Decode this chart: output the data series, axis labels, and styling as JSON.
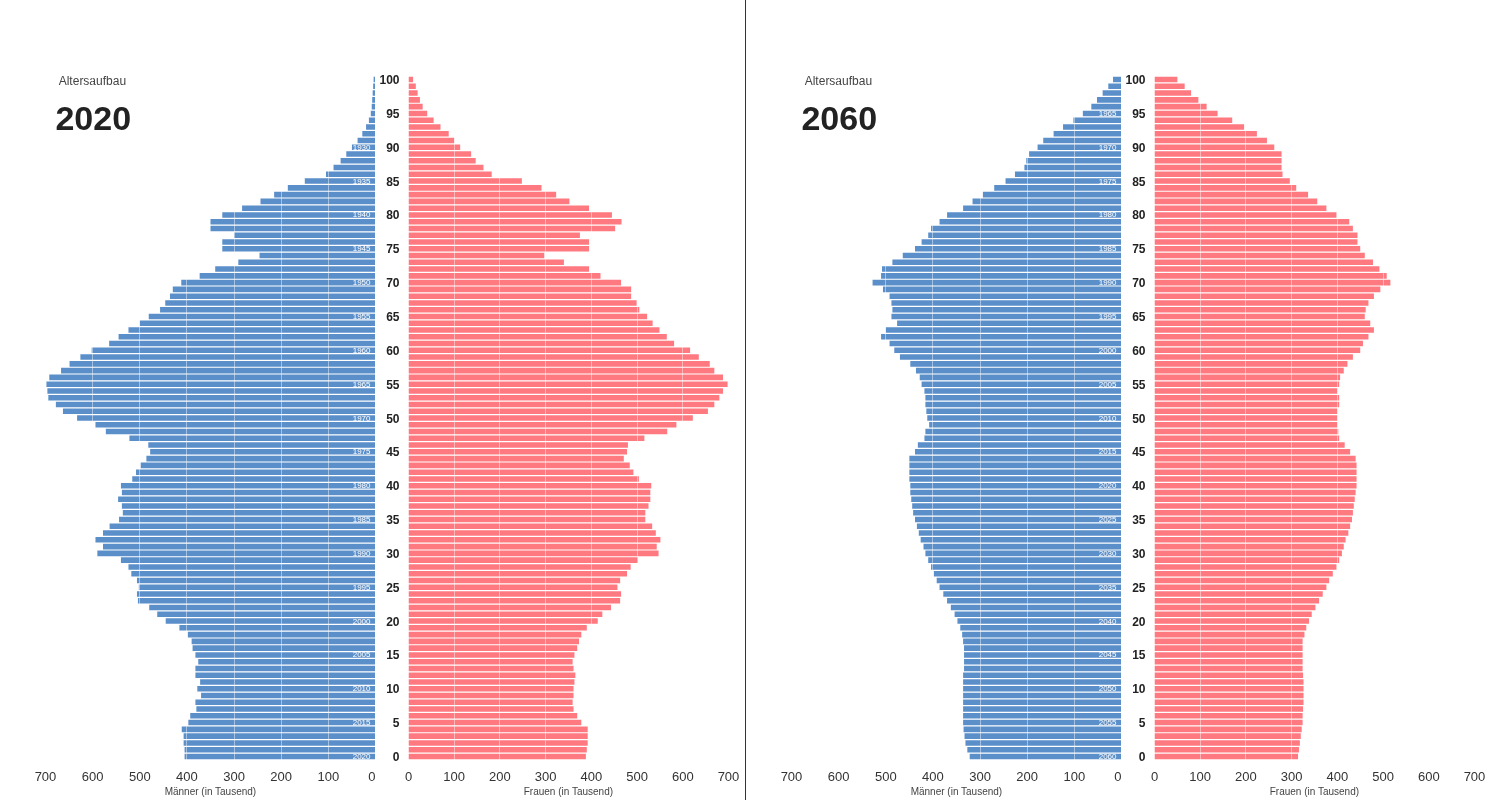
{
  "chart_data": [
    {
      "type": "bar",
      "orientation": "horizontal",
      "subtitle": "Altersaufbau",
      "title": "2020",
      "xlabel": "Männer (in Tausend)",
      "color": "#5b8fca",
      "xlim": [
        700,
        0
      ],
      "xticks": [
        700,
        600,
        500,
        400,
        300,
        200,
        100,
        0
      ],
      "grid": "x",
      "categories": [
        null,
        null,
        null,
        null,
        null,
        null,
        null,
        null,
        null,
        null,
        "1930",
        null,
        null,
        null,
        null,
        "1935",
        null,
        null,
        null,
        null,
        "1940",
        null,
        null,
        null,
        null,
        "1945",
        null,
        null,
        null,
        null,
        "1950",
        null,
        null,
        null,
        null,
        "1955",
        null,
        null,
        null,
        null,
        "1960",
        null,
        null,
        null,
        null,
        "1965",
        null,
        null,
        null,
        null,
        "1970",
        null,
        null,
        null,
        null,
        "1975",
        null,
        null,
        null,
        null,
        "1980",
        null,
        null,
        null,
        null,
        "1985",
        null,
        null,
        null,
        null,
        "1990",
        null,
        null,
        null,
        null,
        "1995",
        null,
        null,
        null,
        null,
        "2000",
        null,
        null,
        null,
        null,
        "2005",
        null,
        null,
        null,
        null,
        "2010",
        null,
        null,
        null,
        null,
        "2015",
        null,
        null,
        null,
        null,
        "2020"
      ],
      "values": [
        4,
        5,
        6,
        7,
        8,
        10,
        14,
        20,
        28,
        38,
        50,
        62,
        74,
        89,
        105,
        150,
        186,
        215,
        244,
        283,
        325,
        350,
        350,
        300,
        325,
        325,
        246,
        291,
        340,
        373,
        412,
        430,
        436,
        446,
        457,
        481,
        500,
        524,
        545,
        565,
        602,
        626,
        649,
        667,
        692,
        698,
        696,
        694,
        678,
        663,
        633,
        594,
        572,
        522,
        482,
        478,
        486,
        498,
        508,
        516,
        540,
        538,
        546,
        538,
        536,
        544,
        564,
        578,
        594,
        578,
        590,
        540,
        524,
        518,
        506,
        502,
        506,
        504,
        480,
        463,
        445,
        416,
        398,
        390,
        388,
        382,
        376,
        382,
        382,
        372,
        378,
        370,
        382,
        380,
        393,
        397,
        411,
        407,
        407,
        405,
        405
      ]
    },
    {
      "type": "bar",
      "orientation": "horizontal",
      "xlabel": "Frauen (in Tausend)",
      "color": "#ff7a80",
      "xlim": [
        0,
        700
      ],
      "xticks": [
        0,
        100,
        200,
        300,
        400,
        500,
        600,
        700
      ],
      "grid": "x",
      "categories": [
        "100",
        null,
        null,
        null,
        null,
        "95",
        null,
        null,
        null,
        null,
        "90",
        null,
        null,
        null,
        null,
        "85",
        null,
        null,
        null,
        null,
        "80",
        null,
        null,
        null,
        null,
        "75",
        null,
        null,
        null,
        null,
        "70",
        null,
        null,
        null,
        null,
        "65",
        null,
        null,
        null,
        null,
        "60",
        null,
        null,
        null,
        null,
        "55",
        null,
        null,
        null,
        null,
        "50",
        null,
        null,
        null,
        null,
        "45",
        null,
        null,
        null,
        null,
        "40",
        null,
        null,
        null,
        null,
        "35",
        null,
        null,
        null,
        null,
        "30",
        null,
        null,
        null,
        null,
        "25",
        null,
        null,
        null,
        null,
        "20",
        null,
        null,
        null,
        null,
        "15",
        null,
        null,
        null,
        null,
        "10",
        null,
        null,
        null,
        null,
        "5",
        null,
        null,
        null,
        null,
        "0"
      ],
      "values": [
        10,
        16,
        20,
        25,
        31,
        41,
        55,
        70,
        88,
        100,
        113,
        137,
        147,
        164,
        182,
        248,
        291,
        323,
        352,
        395,
        445,
        466,
        452,
        375,
        395,
        395,
        297,
        340,
        395,
        420,
        465,
        487,
        487,
        499,
        505,
        522,
        534,
        549,
        565,
        581,
        616,
        635,
        659,
        669,
        688,
        698,
        688,
        680,
        669,
        655,
        622,
        586,
        566,
        516,
        480,
        478,
        471,
        484,
        492,
        504,
        531,
        529,
        529,
        525,
        518,
        518,
        533,
        541,
        551,
        543,
        547,
        502,
        486,
        478,
        463,
        457,
        465,
        463,
        443,
        424,
        414,
        390,
        378,
        373,
        369,
        363,
        359,
        361,
        365,
        363,
        361,
        361,
        359,
        361,
        369,
        378,
        392,
        392,
        392,
        390,
        388
      ]
    },
    {
      "type": "bar",
      "orientation": "horizontal",
      "subtitle": "Altersaufbau",
      "title": "2060",
      "xlabel": "Männer (in Tausend)",
      "color": "#5b8fca",
      "xlim": [
        700,
        0
      ],
      "xticks": [
        700,
        600,
        500,
        400,
        300,
        200,
        100,
        0
      ],
      "grid": "x",
      "categories": [
        null,
        null,
        null,
        null,
        null,
        "1965",
        null,
        null,
        null,
        null,
        "1970",
        null,
        null,
        null,
        null,
        "1975",
        null,
        null,
        null,
        null,
        "1980",
        null,
        null,
        null,
        null,
        "1985",
        null,
        null,
        null,
        null,
        "1990",
        null,
        null,
        null,
        null,
        "1995",
        null,
        null,
        null,
        null,
        "2000",
        null,
        null,
        null,
        null,
        "2005",
        null,
        null,
        null,
        null,
        "2010",
        null,
        null,
        null,
        null,
        "2015",
        null,
        null,
        null,
        null,
        "2020",
        null,
        null,
        null,
        null,
        "2025",
        null,
        null,
        null,
        null,
        "2030",
        null,
        null,
        null,
        null,
        "2035",
        null,
        null,
        null,
        null,
        "2040",
        null,
        null,
        null,
        null,
        "2045",
        null,
        null,
        null,
        null,
        "2050",
        null,
        null,
        null,
        null,
        "2055",
        null,
        null,
        null,
        null,
        "2060"
      ],
      "values": [
        18,
        28,
        40,
        52,
        64,
        82,
        102,
        124,
        144,
        166,
        178,
        196,
        202,
        206,
        226,
        246,
        270,
        294,
        316,
        336,
        370,
        386,
        404,
        410,
        424,
        438,
        464,
        486,
        508,
        510,
        528,
        506,
        492,
        488,
        486,
        488,
        476,
        500,
        510,
        492,
        482,
        470,
        448,
        436,
        428,
        424,
        418,
        416,
        416,
        414,
        412,
        408,
        416,
        418,
        432,
        438,
        450,
        450,
        450,
        450,
        448,
        448,
        446,
        444,
        442,
        438,
        434,
        430,
        426,
        420,
        416,
        410,
        404,
        398,
        392,
        386,
        378,
        370,
        362,
        354,
        348,
        342,
        338,
        336,
        334,
        334,
        334,
        334,
        336,
        336,
        336,
        336,
        336,
        336,
        336,
        336,
        335,
        333,
        331,
        327,
        322
      ]
    },
    {
      "type": "bar",
      "orientation": "horizontal",
      "xlabel": "Frauen (in Tausend)",
      "color": "#ff7a80",
      "xlim": [
        0,
        700
      ],
      "xticks": [
        0,
        100,
        200,
        300,
        400,
        500,
        600,
        700
      ],
      "grid": "x",
      "categories": [
        "100",
        null,
        null,
        null,
        null,
        "95",
        null,
        null,
        null,
        null,
        "90",
        null,
        null,
        null,
        null,
        "85",
        null,
        null,
        null,
        null,
        "80",
        null,
        null,
        null,
        null,
        "75",
        null,
        null,
        null,
        null,
        "70",
        null,
        null,
        null,
        null,
        "65",
        null,
        null,
        null,
        null,
        "60",
        null,
        null,
        null,
        null,
        "55",
        null,
        null,
        null,
        null,
        "50",
        null,
        null,
        null,
        null,
        "45",
        null,
        null,
        null,
        null,
        "40",
        null,
        null,
        null,
        null,
        "35",
        null,
        null,
        null,
        null,
        "30",
        null,
        null,
        null,
        null,
        "25",
        null,
        null,
        null,
        null,
        "20",
        null,
        null,
        null,
        null,
        "15",
        null,
        null,
        null,
        null,
        "10",
        null,
        null,
        null,
        null,
        "5",
        null,
        null,
        null,
        null,
        "0"
      ],
      "values": [
        50,
        66,
        80,
        96,
        114,
        138,
        170,
        196,
        224,
        246,
        262,
        278,
        278,
        278,
        280,
        296,
        310,
        336,
        356,
        376,
        398,
        426,
        434,
        444,
        444,
        450,
        460,
        478,
        492,
        508,
        516,
        494,
        480,
        468,
        462,
        460,
        472,
        480,
        468,
        456,
        450,
        434,
        422,
        414,
        406,
        404,
        400,
        404,
        404,
        400,
        400,
        400,
        402,
        404,
        416,
        428,
        440,
        442,
        442,
        442,
        442,
        440,
        438,
        436,
        434,
        432,
        428,
        424,
        418,
        414,
        410,
        404,
        398,
        390,
        382,
        376,
        368,
        360,
        352,
        344,
        338,
        332,
        328,
        324,
        324,
        324,
        324,
        324,
        325,
        326,
        326,
        326,
        326,
        325,
        324,
        324,
        322,
        320,
        318,
        316,
        314
      ]
    }
  ]
}
